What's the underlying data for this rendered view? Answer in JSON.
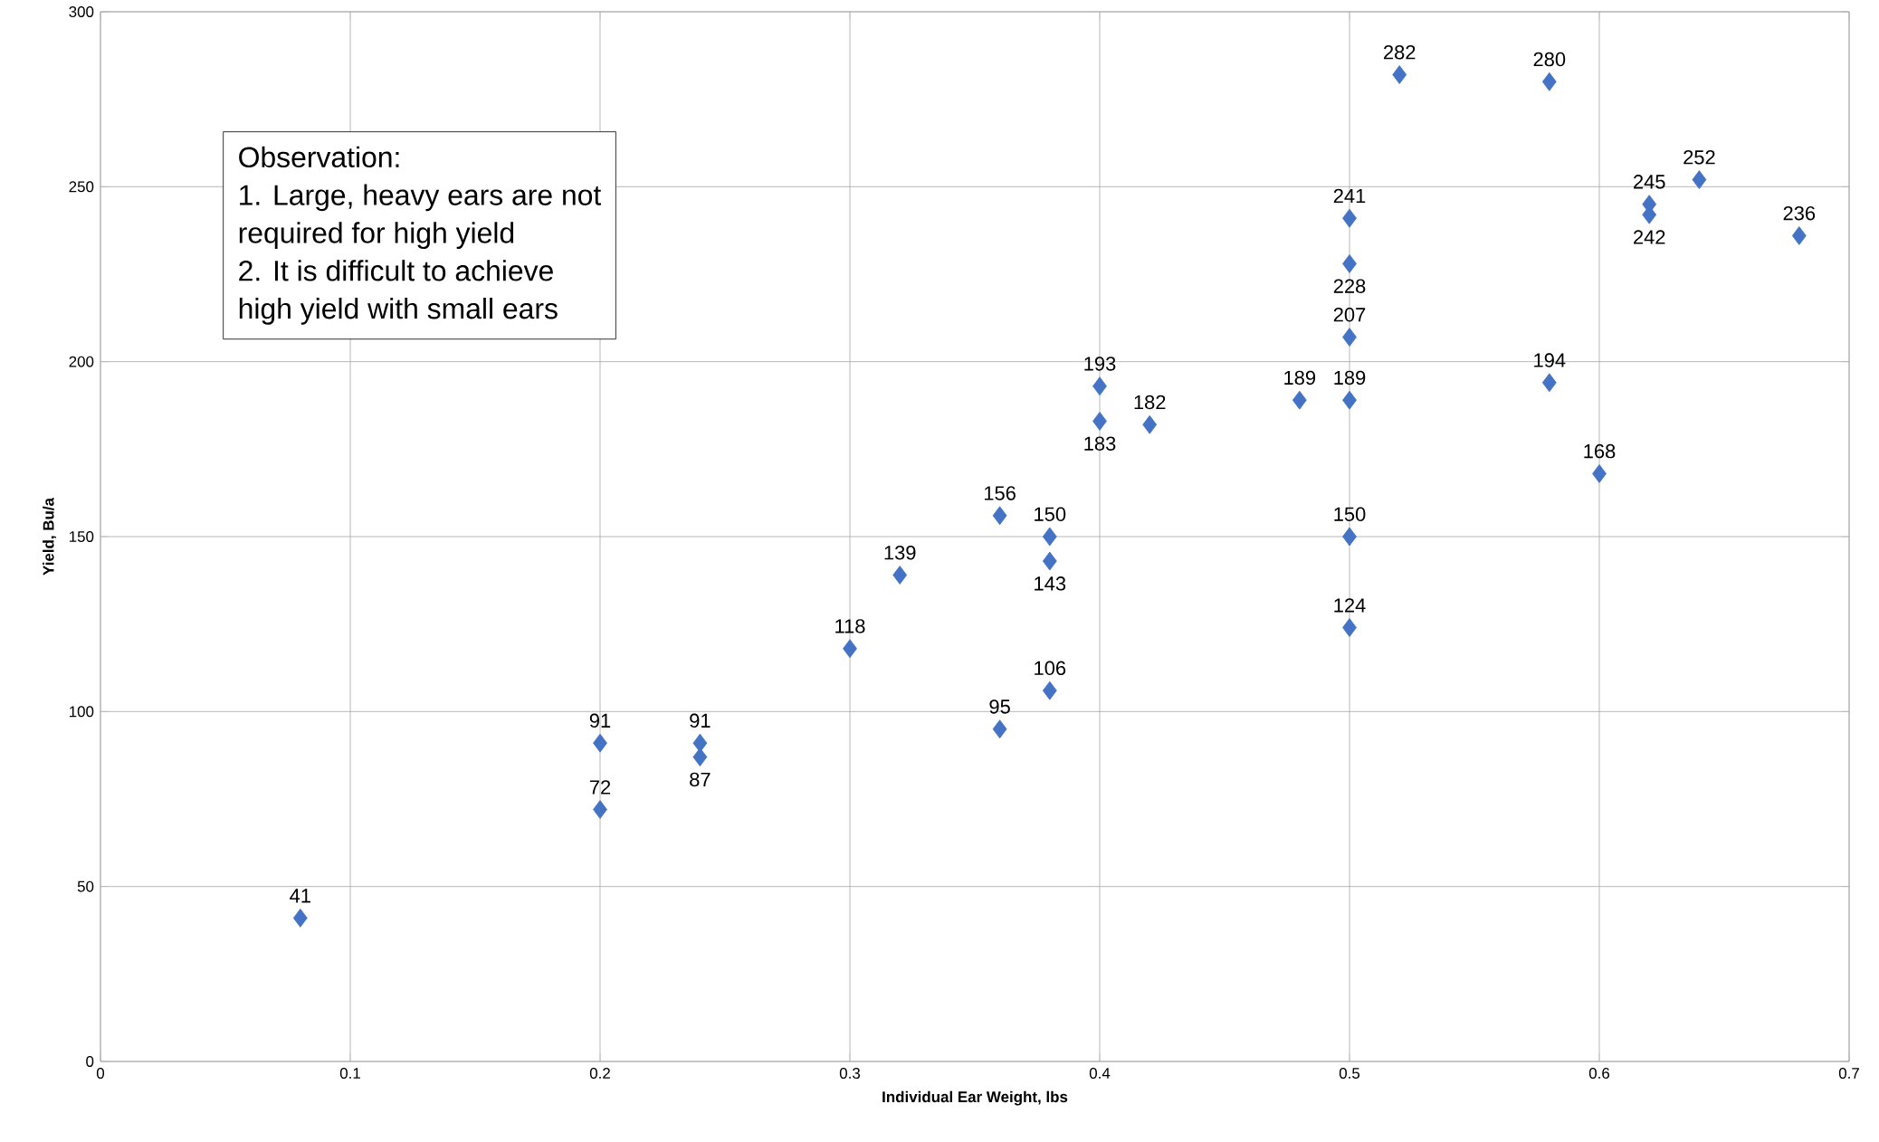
{
  "chart_data": {
    "type": "scatter",
    "xlabel": "Individual Ear Weight, lbs",
    "ylabel": "Yield, Bu/a",
    "x": [
      0.08,
      0.2,
      0.2,
      0.24,
      0.24,
      0.3,
      0.32,
      0.36,
      0.36,
      0.38,
      0.38,
      0.38,
      0.4,
      0.4,
      0.42,
      0.48,
      0.5,
      0.5,
      0.5,
      0.5,
      0.5,
      0.5,
      0.52,
      0.58,
      0.58,
      0.6,
      0.62,
      0.62,
      0.64,
      0.68
    ],
    "values": [
      41,
      91,
      72,
      91,
      87,
      118,
      139,
      156,
      95,
      150,
      143,
      106,
      193,
      183,
      182,
      189,
      241,
      228,
      207,
      189,
      150,
      124,
      282,
      280,
      194,
      168,
      245,
      242,
      252,
      236
    ],
    "color": "#4472c4",
    "marker": "diamond",
    "data_labels": true,
    "grid": true,
    "xlim": [
      0,
      0.7
    ],
    "xticks": [
      0,
      0.1,
      0.2,
      0.3,
      0.4,
      0.5,
      0.6,
      0.7
    ],
    "ylim": [
      0,
      300
    ],
    "yticks": [
      0,
      50,
      100,
      150,
      200,
      250,
      300
    ],
    "annotations": [
      "Observation:",
      "1. Large, heavy ears are not",
      "required for high yield",
      "2. It is difficult to achieve",
      "high yield with small ears"
    ]
  }
}
